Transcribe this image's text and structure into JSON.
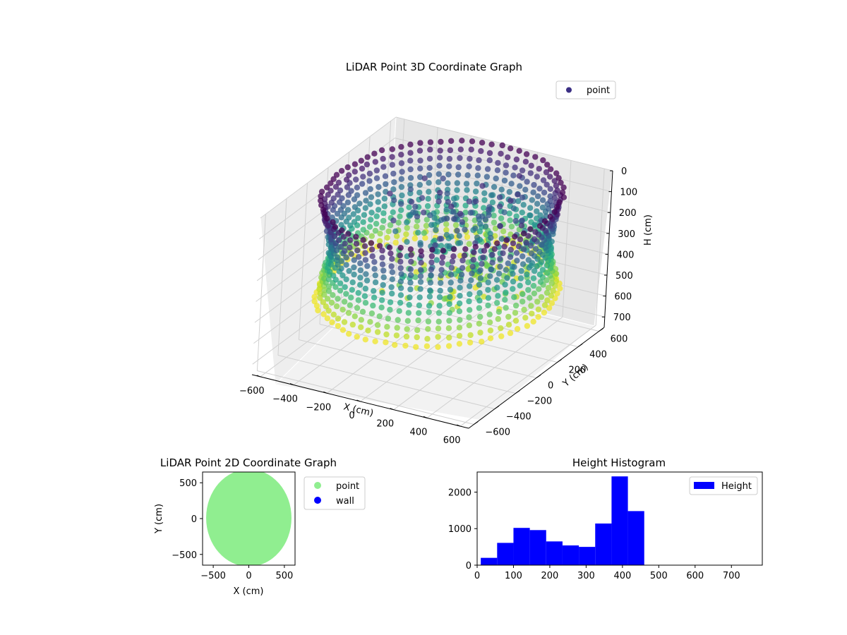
{
  "chart_data": [
    {
      "type": "scatter",
      "projection": "3d",
      "title": "LiDAR Point 3D Coordinate Graph",
      "xlabel": "X (cm)",
      "ylabel": "Y (cm)",
      "zlabel": "H (cm)",
      "xlim": [
        -650,
        650
      ],
      "ylim": [
        -650,
        650
      ],
      "zlim": [
        750,
        0
      ],
      "z_inverted": true,
      "xticks": [
        -600,
        -400,
        -200,
        0,
        200,
        400,
        600
      ],
      "yticks": [
        -600,
        -400,
        -200,
        0,
        200,
        400,
        600
      ],
      "zticks": [
        0,
        100,
        200,
        300,
        400,
        500,
        600,
        700
      ],
      "colormap": "viridis",
      "grid": true,
      "legend": {
        "position": "upper right",
        "entries": [
          "point"
        ]
      },
      "series": [
        {
          "name": "point",
          "color": "#3b2f84",
          "shape": "ring",
          "radius_range": [
            500,
            650
          ],
          "height_range": [
            0,
            460
          ]
        }
      ]
    },
    {
      "type": "scatter",
      "title": "LiDAR Point 2D Coordinate Graph",
      "xlabel": "X (cm)",
      "ylabel": "Y (cm)",
      "xlim": [
        -650,
        650
      ],
      "ylim": [
        -650,
        650
      ],
      "xticks": [
        -500,
        0,
        500
      ],
      "yticks": [
        -500,
        0,
        500
      ],
      "legend": {
        "position": "outside right",
        "entries": [
          "point",
          "wall"
        ]
      },
      "series": [
        {
          "name": "point",
          "color": "#90ee90",
          "region": "disk",
          "radius": 600
        },
        {
          "name": "wall",
          "color": "#0000ff",
          "values": []
        }
      ]
    },
    {
      "type": "bar",
      "subtype": "histogram",
      "title": "Height Histogram",
      "xlabel": "",
      "ylabel": "",
      "xlim": [
        0,
        785
      ],
      "ylim": [
        0,
        2550
      ],
      "xticks": [
        0,
        100,
        200,
        300,
        400,
        500,
        600,
        700
      ],
      "yticks": [
        0,
        1000,
        2000
      ],
      "legend": {
        "position": "upper right",
        "entries": [
          "Height"
        ]
      },
      "series": [
        {
          "name": "Height",
          "color": "#0000ff",
          "bins": [
            {
              "x0": 10,
              "x1": 55,
              "value": 200
            },
            {
              "x0": 55,
              "x1": 100,
              "value": 610
            },
            {
              "x0": 100,
              "x1": 145,
              "value": 1020
            },
            {
              "x0": 145,
              "x1": 190,
              "value": 960
            },
            {
              "x0": 190,
              "x1": 235,
              "value": 650
            },
            {
              "x0": 235,
              "x1": 280,
              "value": 540
            },
            {
              "x0": 280,
              "x1": 325,
              "value": 500
            },
            {
              "x0": 325,
              "x1": 370,
              "value": 1140
            },
            {
              "x0": 370,
              "x1": 415,
              "value": 2430
            },
            {
              "x0": 415,
              "x1": 460,
              "value": 1480
            }
          ]
        }
      ]
    }
  ]
}
